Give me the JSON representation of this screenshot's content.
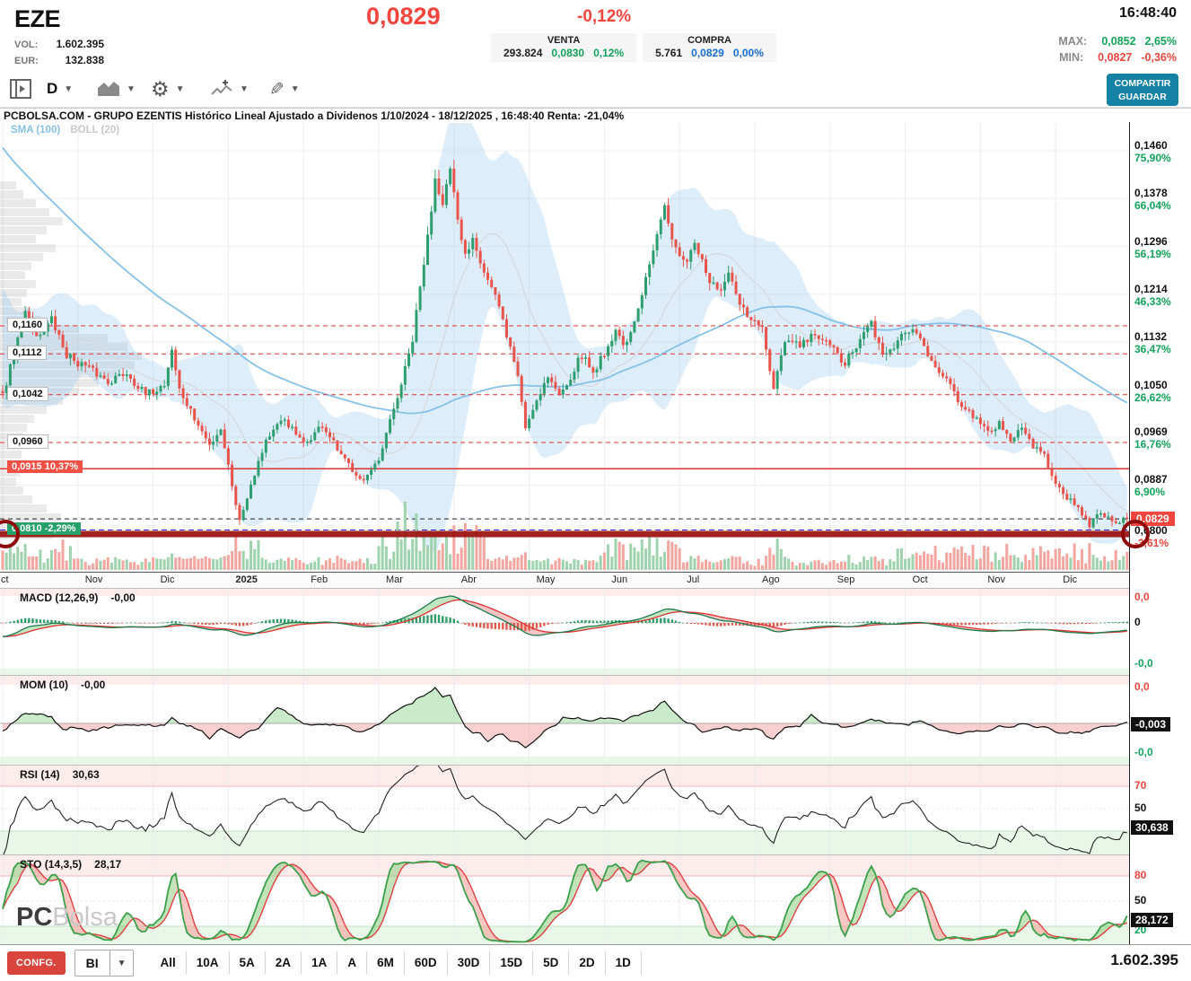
{
  "header": {
    "symbol": "EZE",
    "vol_label": "VOL:",
    "vol_value": "1.602.395",
    "eur_label": "EUR:",
    "eur_value": "132.838",
    "last_price": "0,0829",
    "change_pct": "-0,12%",
    "time": "16:48:40",
    "venta": {
      "label": "VENTA",
      "volume": "293.824",
      "price": "0,0830",
      "pct": "0,12%"
    },
    "compra": {
      "label": "COMPRA",
      "volume": "5.761",
      "price": "0,0829",
      "pct": "0,00%"
    },
    "max_label": "MAX:",
    "max_value": "0,0852",
    "max_pct": "2,65%",
    "min_label": "MIN:",
    "min_value": "0,0827",
    "min_pct": "-0,36%"
  },
  "toolbar": {
    "timeframe": "D",
    "share_label": "COMPARTIR",
    "save_label": "GUARDAR"
  },
  "chart": {
    "title": "PCBOLSA.COM - GRUPO EZENTIS Histórico Lineal Ajustado a Dividenos 1/10/2024 - 18/12/2025 , 16:48:40 Renta: -21,04%",
    "legend_sma": "SMA (100)",
    "legend_boll": "BOLL (20)",
    "months": [
      "ct",
      "Nov",
      "Dic",
      "2025",
      "Feb",
      "Mar",
      "Abr",
      "May",
      "Jun",
      "Jul",
      "Ago",
      "Sep",
      "Oct",
      "Nov",
      "Dic"
    ]
  },
  "panels": {
    "macd": {
      "label": "MACD (12,26,9)",
      "value": "-0,00",
      "axis_top": "0,0",
      "axis_mid": "0",
      "axis_bottom": "-0,0"
    },
    "mom": {
      "label": "MOM (10)",
      "value": "-0,00",
      "axis_top": "0,0",
      "badge": "-0,003",
      "axis_bottom": "-0,0"
    },
    "rsi": {
      "label": "RSI (14)",
      "value": "30,63",
      "axis_top": "70",
      "axis_mid": "50",
      "badge": "30,638"
    },
    "sto": {
      "label": "STO (14,3,5)",
      "value": "28,17",
      "axis_top": "80",
      "axis_mid": "50",
      "badge": "28,172",
      "axis_bottom": "20"
    }
  },
  "watermark": {
    "pc": "PC",
    "bolsa": "Bolsa"
  },
  "bottom_bar": {
    "confg": "CONFG.",
    "mode": "BI",
    "ranges": [
      "All",
      "10A",
      "5A",
      "2A",
      "1A",
      "A",
      "6M",
      "60D",
      "30D",
      "15D",
      "5D",
      "2D",
      "1D"
    ],
    "total": "1.602.395"
  },
  "chart_data": {
    "type": "candlestick",
    "title": "GRUPO EZENTIS (EZE) Histórico Lineal Ajustado a Dividendos",
    "date_range": "1/10/2024 - 18/12/2025",
    "current_price": 0.0829,
    "right_axis": [
      {
        "price": "0,1460",
        "pct": "75,90%",
        "p": 0.146
      },
      {
        "price": "0,1378",
        "pct": "66,04%",
        "p": 0.1378
      },
      {
        "price": "0,1296",
        "pct": "56,19%",
        "p": 0.1296
      },
      {
        "price": "0,1214",
        "pct": "46,33%",
        "p": 0.1214
      },
      {
        "price": "0,1132",
        "pct": "36,47%",
        "p": 0.1132
      },
      {
        "price": "0,1050",
        "pct": "26,62%",
        "p": 0.105
      },
      {
        "price": "0,0969",
        "pct": "16,76%",
        "p": 0.0969
      },
      {
        "price": "0,0887",
        "pct": "6,90%",
        "p": 0.0887
      },
      {
        "price": "0,0800",
        "pct": "-3,61%",
        "p": 0.08,
        "neg": true
      }
    ],
    "current_badge": {
      "text": "0,0829",
      "p": 0.0829
    },
    "left_levels": [
      {
        "text": "0,1160",
        "p": 0.116,
        "style": "plain",
        "line": "red-dash"
      },
      {
        "text": "0,1112",
        "p": 0.1112,
        "style": "plain",
        "line": "red-dash"
      },
      {
        "text": "0,1042",
        "p": 0.1042,
        "style": "plain",
        "line": "red-dash"
      },
      {
        "text": "0,0960",
        "p": 0.096,
        "style": "plain",
        "line": "red-dash"
      },
      {
        "text": "0,0915  10,37%",
        "p": 0.0915,
        "style": "redb",
        "line": "red-solid"
      },
      {
        "text": "0,0810  -2,29%",
        "p": 0.081,
        "style": "greenb",
        "line": "blue-dash"
      }
    ],
    "price_dash_line": 0.0829,
    "support_band": 0.0803,
    "anchors": [
      [
        0,
        0.104
      ],
      [
        3,
        0.111
      ],
      [
        6,
        0.119
      ],
      [
        9,
        0.114
      ],
      [
        13,
        0.117
      ],
      [
        17,
        0.111
      ],
      [
        22,
        0.109
      ],
      [
        28,
        0.1065
      ],
      [
        33,
        0.108
      ],
      [
        38,
        0.104
      ],
      [
        43,
        0.106
      ],
      [
        45,
        0.112
      ],
      [
        47,
        0.105
      ],
      [
        51,
        0.1
      ],
      [
        55,
        0.0955
      ],
      [
        58,
        0.0985
      ],
      [
        60,
        0.092
      ],
      [
        63,
        0.0825
      ],
      [
        66,
        0.089
      ],
      [
        70,
        0.0965
      ],
      [
        75,
        0.1
      ],
      [
        80,
        0.0955
      ],
      [
        85,
        0.099
      ],
      [
        90,
        0.0935
      ],
      [
        96,
        0.0895
      ],
      [
        100,
        0.0925
      ],
      [
        103,
        0.0995
      ],
      [
        106,
        0.106
      ],
      [
        109,
        0.1135
      ],
      [
        111,
        0.1225
      ],
      [
        113,
        0.131
      ],
      [
        115,
        0.1415
      ],
      [
        117,
        0.1375
      ],
      [
        119,
        0.1425
      ],
      [
        121,
        0.1335
      ],
      [
        123,
        0.128
      ],
      [
        125,
        0.1315
      ],
      [
        128,
        0.1255
      ],
      [
        131,
        0.121
      ],
      [
        134,
        0.1145
      ],
      [
        137,
        0.1075
      ],
      [
        139,
        0.0985
      ],
      [
        142,
        0.1035
      ],
      [
        145,
        0.1075
      ],
      [
        148,
        0.104
      ],
      [
        151,
        0.1075
      ],
      [
        154,
        0.111
      ],
      [
        157,
        0.108
      ],
      [
        160,
        0.1115
      ],
      [
        163,
        0.115
      ],
      [
        166,
        0.1125
      ],
      [
        169,
        0.1185
      ],
      [
        172,
        0.1265
      ],
      [
        174,
        0.1325
      ],
      [
        176,
        0.1375
      ],
      [
        178,
        0.1305
      ],
      [
        181,
        0.1265
      ],
      [
        184,
        0.1305
      ],
      [
        187,
        0.125
      ],
      [
        190,
        0.1215
      ],
      [
        193,
        0.1245
      ],
      [
        196,
        0.1195
      ],
      [
        199,
        0.117
      ],
      [
        202,
        0.1155
      ],
      [
        205,
        0.1045
      ],
      [
        208,
        0.1135
      ],
      [
        212,
        0.1125
      ],
      [
        216,
        0.1145
      ],
      [
        220,
        0.1125
      ],
      [
        224,
        0.1095
      ],
      [
        228,
        0.1135
      ],
      [
        231,
        0.1165
      ],
      [
        234,
        0.1105
      ],
      [
        238,
        0.1135
      ],
      [
        242,
        0.1155
      ],
      [
        246,
        0.1115
      ],
      [
        250,
        0.1075
      ],
      [
        254,
        0.1035
      ],
      [
        258,
        0.1005
      ],
      [
        262,
        0.0975
      ],
      [
        265,
        0.0995
      ],
      [
        268,
        0.0965
      ],
      [
        271,
        0.0985
      ],
      [
        274,
        0.0955
      ],
      [
        277,
        0.0935
      ],
      [
        280,
        0.0895
      ],
      [
        283,
        0.0865
      ],
      [
        286,
        0.0845
      ],
      [
        289,
        0.082
      ],
      [
        292,
        0.084
      ],
      [
        295,
        0.0825
      ],
      [
        299,
        0.0829
      ]
    ],
    "indicators": [
      {
        "name": "MACD",
        "params": "12,26,9",
        "last": -0.0
      },
      {
        "name": "MOM",
        "params": "10",
        "last": -0.003
      },
      {
        "name": "RSI",
        "params": "14",
        "last": 30.638
      },
      {
        "name": "STO",
        "params": "14,3,5",
        "last": 28.172
      }
    ],
    "colors": {
      "up": "#2e9e6e",
      "down": "#e8534a",
      "boll_fill": "rgba(147,196,237,0.30)",
      "sma": "#85c1e8",
      "accent_red": "#f4453e",
      "accent_green": "#12a35a",
      "accent_blue": "#1a6fd4"
    }
  }
}
